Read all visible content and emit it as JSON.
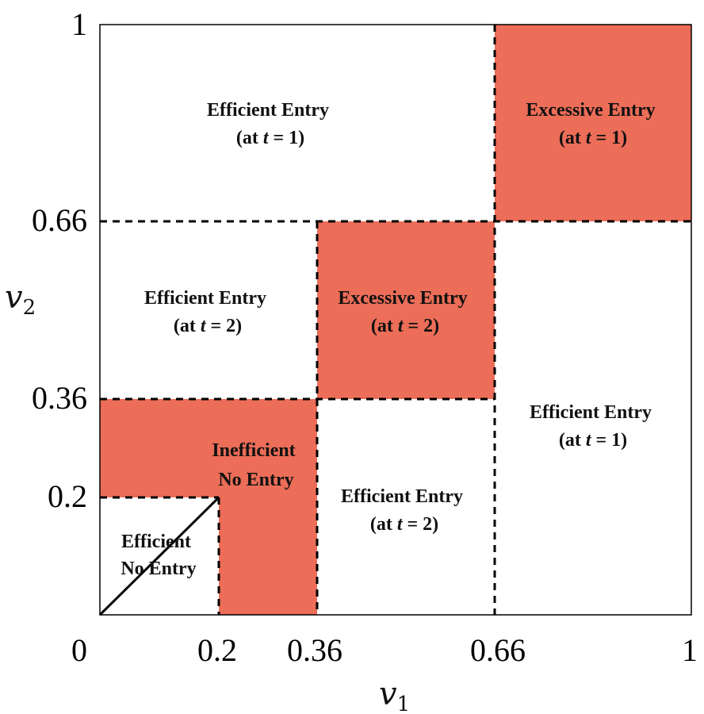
{
  "axes": {
    "x_label": {
      "var": "v",
      "sub": "1"
    },
    "y_label": {
      "var": "v",
      "sub": "2"
    },
    "x_ticks": [
      "0",
      "0.2",
      "0.36",
      "0.66",
      "1"
    ],
    "y_ticks": [
      "1",
      "0.66",
      "0.36",
      "0.2"
    ]
  },
  "regions": {
    "efficient_t1_top": {
      "line1": "Efficient Entry",
      "line2_prefix": "(at ",
      "var": "t",
      "line2_suffix": " = 1)"
    },
    "excessive_t1": {
      "line1": "Excessive Entry",
      "line2_prefix": "(at ",
      "var": "t",
      "line2_suffix": " = 1)"
    },
    "efficient_t2_left": {
      "line1": "Efficient Entry",
      "line2_prefix": "(at ",
      "var": "t",
      "line2_suffix": " = 2)"
    },
    "excessive_t2": {
      "line1": "Excessive Entry",
      "line2_prefix": "(at ",
      "var": "t",
      "line2_suffix": " = 2)"
    },
    "efficient_t1_right": {
      "line1": "Efficient Entry",
      "line2_prefix": "(at ",
      "var": "t",
      "line2_suffix": " = 1)"
    },
    "inefficient_no_entry": {
      "line1": "Inefficient",
      "line2": "No Entry"
    },
    "efficient_t2_bottom": {
      "line1": "Efficient Entry",
      "line2_prefix": "(at ",
      "var": "t",
      "line2_suffix": " = 2)"
    },
    "efficient_no_entry": {
      "line1": "Efficient",
      "line2": "No Entry"
    }
  },
  "colors": {
    "highlight": "#EC6D58",
    "line": "#000000",
    "background": "#ffffff"
  }
}
